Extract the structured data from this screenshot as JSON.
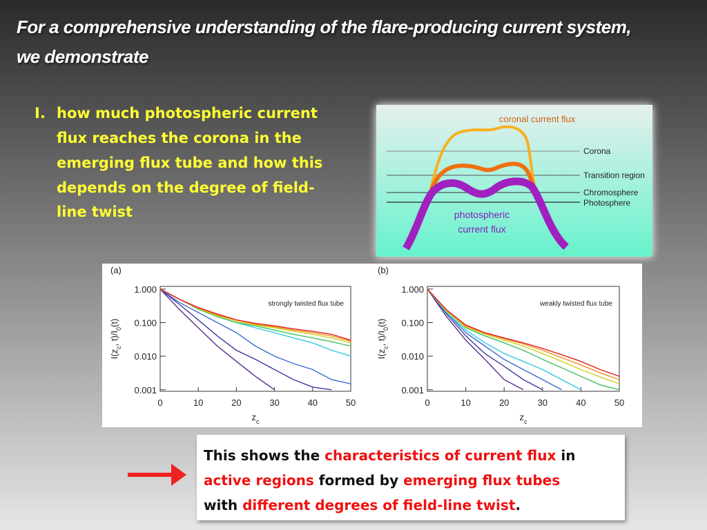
{
  "title": [
    "For a comprehensive understanding of the flare-producing current system,",
    "we demonstrate"
  ],
  "bullet": {
    "marker": "I.",
    "lines": [
      "how much photospheric current",
      "flux reaches the corona in the",
      "emerging flux tube and how this",
      "depends on the degree of field-",
      "line twist"
    ]
  },
  "diagram": {
    "coronal_label": "coronal current flux",
    "layers": [
      "Corona",
      "Transition region",
      "Chromosphere",
      "Photosphere"
    ],
    "photospheric_label": [
      "photospheric",
      "current flux"
    ]
  },
  "chart_data": [
    {
      "type": "line",
      "panel_label": "(a)",
      "annotation": "strongly twisted flux tube",
      "xlabel": [
        "z",
        "c"
      ],
      "ylabel": [
        "I(z",
        "c",
        ", t)/I",
        "0",
        "(t)"
      ],
      "ylog": true,
      "xlim": [
        0,
        50
      ],
      "ylim": [
        0.0009,
        1.2
      ],
      "xticks": [
        0,
        10,
        20,
        30,
        40,
        50
      ],
      "yticks": [
        {
          "value": 1,
          "label": "1.000"
        },
        {
          "value": 0.1,
          "label": "0.100"
        },
        {
          "value": 0.01,
          "label": "0.010"
        },
        {
          "value": 0.001,
          "label": "0.001"
        }
      ],
      "x": [
        0,
        5,
        10,
        15,
        20,
        25,
        30,
        35,
        40,
        45,
        50
      ],
      "series": [
        {
          "color": "#5a2a8a",
          "values": [
            1,
            0.25,
            0.07,
            0.02,
            0.007,
            0.0025,
            0.001,
            null,
            null,
            null,
            null
          ]
        },
        {
          "color": "#3a3a9a",
          "values": [
            1,
            0.35,
            0.12,
            0.04,
            0.015,
            0.008,
            0.004,
            0.002,
            0.0012,
            0.001,
            null
          ]
        },
        {
          "color": "#3a6ad0",
          "values": [
            1,
            0.4,
            0.2,
            0.1,
            0.05,
            0.02,
            0.01,
            0.006,
            0.004,
            0.002,
            0.0015
          ]
        },
        {
          "color": "#30c8e0",
          "values": [
            1,
            0.5,
            0.25,
            0.15,
            0.1,
            0.07,
            0.05,
            0.035,
            0.025,
            0.015,
            0.01
          ]
        },
        {
          "color": "#40c060",
          "values": [
            1,
            0.5,
            0.25,
            0.15,
            0.1,
            0.08,
            0.06,
            0.045,
            0.035,
            0.027,
            0.02
          ]
        },
        {
          "color": "#d0d020",
          "values": [
            1,
            0.5,
            0.26,
            0.16,
            0.11,
            0.085,
            0.07,
            0.055,
            0.045,
            0.035,
            0.025
          ]
        },
        {
          "color": "#f09020",
          "values": [
            1,
            0.5,
            0.27,
            0.17,
            0.12,
            0.09,
            0.075,
            0.06,
            0.05,
            0.04,
            0.028
          ]
        },
        {
          "color": "#e02020",
          "values": [
            1,
            0.5,
            0.28,
            0.18,
            0.12,
            0.095,
            0.08,
            0.065,
            0.055,
            0.045,
            0.03
          ]
        }
      ]
    },
    {
      "type": "line",
      "panel_label": "(b)",
      "annotation": "weakly twisted flux tube",
      "xlabel": [
        "z",
        "c"
      ],
      "ylabel": [
        "I(z",
        "c",
        ", t)/I",
        "0",
        "(t)"
      ],
      "ylog": true,
      "xlim": [
        0,
        50
      ],
      "ylim": [
        0.0009,
        1.2
      ],
      "xticks": [
        0,
        10,
        20,
        30,
        40,
        50
      ],
      "yticks": [
        {
          "value": 1,
          "label": "1.000"
        },
        {
          "value": 0.1,
          "label": "0.100"
        },
        {
          "value": 0.01,
          "label": "0.010"
        },
        {
          "value": 0.001,
          "label": "0.001"
        }
      ],
      "x": [
        0,
        5,
        10,
        15,
        20,
        25,
        30,
        35,
        40,
        45,
        50
      ],
      "series": [
        {
          "color": "#5a2a8a",
          "values": [
            1,
            0.15,
            0.03,
            0.008,
            0.002,
            0.001,
            null,
            null,
            null,
            null,
            null
          ]
        },
        {
          "color": "#3a3a9a",
          "values": [
            1,
            0.18,
            0.04,
            0.012,
            0.005,
            0.002,
            0.001,
            null,
            null,
            null,
            null
          ]
        },
        {
          "color": "#3a6ad0",
          "values": [
            1,
            0.2,
            0.05,
            0.02,
            0.008,
            0.004,
            0.002,
            0.001,
            null,
            null,
            null
          ]
        },
        {
          "color": "#30c8e0",
          "values": [
            1,
            0.2,
            0.06,
            0.025,
            0.012,
            0.007,
            0.004,
            0.002,
            0.001,
            null,
            null
          ]
        },
        {
          "color": "#40c060",
          "values": [
            1,
            0.22,
            0.07,
            0.04,
            0.025,
            0.015,
            0.008,
            0.0045,
            0.0025,
            0.0014,
            0.001
          ]
        },
        {
          "color": "#d0d020",
          "values": [
            1,
            0.22,
            0.075,
            0.045,
            0.03,
            0.02,
            0.012,
            0.007,
            0.004,
            0.0024,
            0.0015
          ]
        },
        {
          "color": "#f09020",
          "values": [
            1,
            0.23,
            0.08,
            0.048,
            0.033,
            0.023,
            0.015,
            0.009,
            0.0055,
            0.0032,
            0.002
          ]
        },
        {
          "color": "#e02020",
          "values": [
            1,
            0.24,
            0.085,
            0.05,
            0.035,
            0.025,
            0.017,
            0.011,
            0.007,
            0.004,
            0.0025
          ]
        }
      ]
    }
  ],
  "note": [
    [
      {
        "text": "This shows the ",
        "highlight": false
      },
      {
        "text": "characteristics of current flux",
        "highlight": true
      },
      {
        "text": " in",
        "highlight": false
      }
    ],
    [
      {
        "text": "active regions",
        "highlight": true
      },
      {
        "text": " formed by ",
        "highlight": false
      },
      {
        "text": "emerging flux tubes",
        "highlight": true
      }
    ],
    [
      {
        "text": "with ",
        "highlight": false
      },
      {
        "text": "different degrees of field-line twist",
        "highlight": true
      },
      {
        "text": ".",
        "highlight": false
      }
    ]
  ]
}
